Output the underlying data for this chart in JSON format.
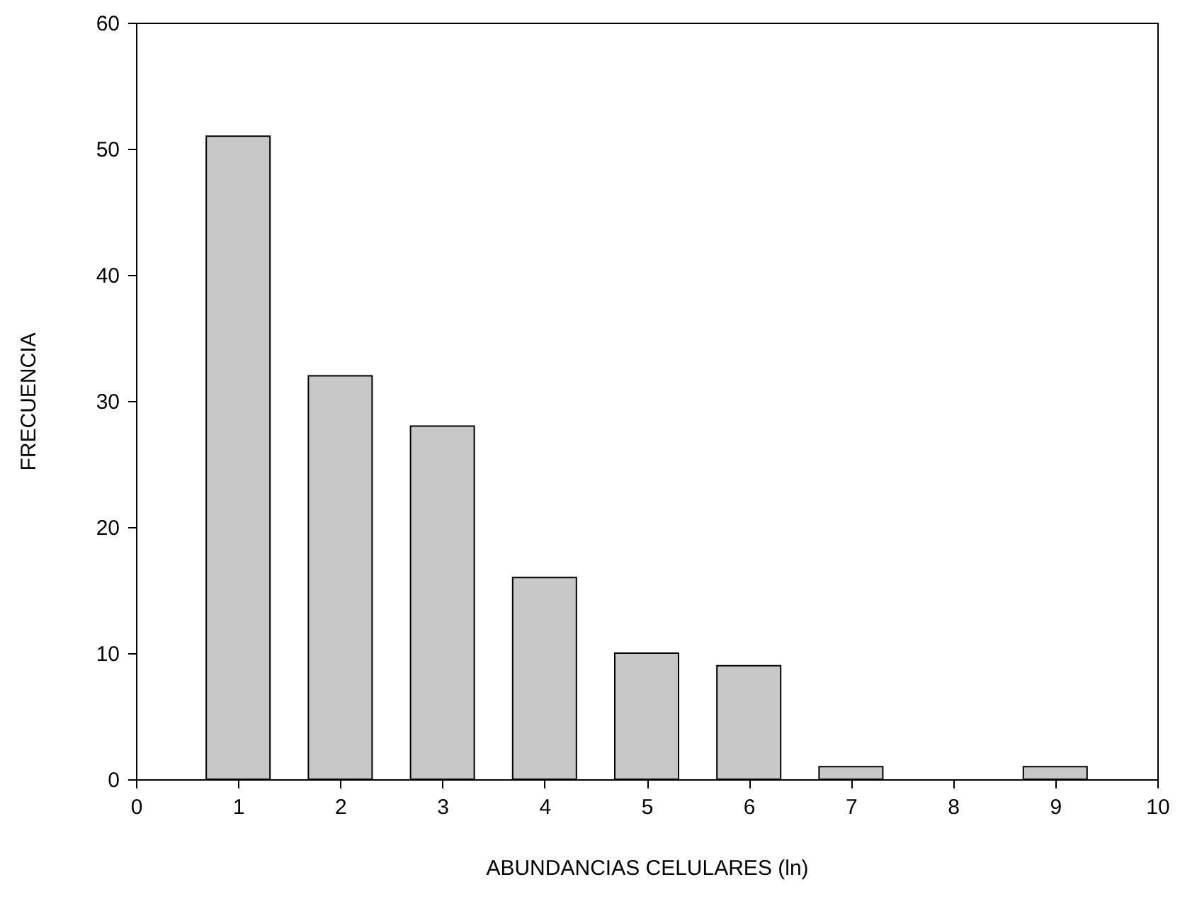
{
  "chart_data": {
    "type": "bar",
    "xlabel": "ABUNDANCIAS CELULARES (ln)",
    "ylabel": "FRECUENCIA",
    "x": [
      1,
      2,
      3,
      4,
      5,
      6,
      7,
      9
    ],
    "values": [
      51,
      32,
      28,
      16,
      10,
      9,
      1,
      1
    ],
    "color": "#c8c8c8",
    "xlim": [
      0,
      10
    ],
    "xticks": [
      0,
      1,
      2,
      3,
      4,
      5,
      6,
      7,
      8,
      9,
      10
    ],
    "ylim": [
      0,
      60
    ],
    "yticks": [
      0,
      10,
      20,
      30,
      40,
      50,
      60
    ],
    "grid": false
  }
}
